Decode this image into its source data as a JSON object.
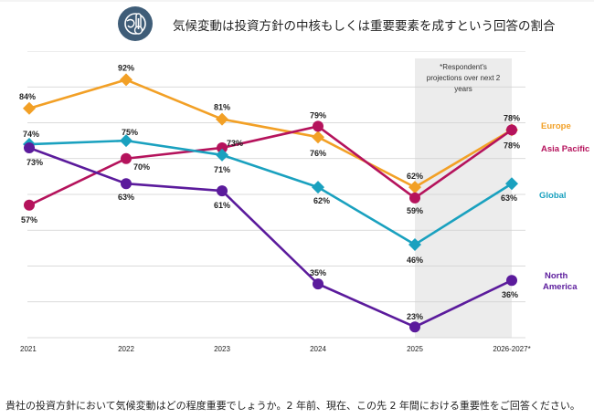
{
  "title": "気候変動は投資方針の中核もしくは重要要素を成すという回答の割合",
  "footnote": "貴社の投資方針において気候変動はどの程度重要でしょうか。2 年前、現在、この先 2 年間における重要性をご回答ください。",
  "icon": "thermometer-globe-icon",
  "colors": {
    "Europe": "#f2a026",
    "Asia Pacific": "#b5135c",
    "Global": "#1aa1bf",
    "North America": "#5b1b9c",
    "icon_bg": "#3f5d78",
    "grid": "#cfcfcf",
    "projection_bg": "#ececec"
  },
  "chart_data": {
    "type": "line",
    "x": [
      "2021",
      "2022",
      "2023",
      "2024",
      "2025",
      "2026-2027*"
    ],
    "ylim": [
      20,
      100
    ],
    "grid": true,
    "legend": "right-end labels",
    "annotation": "*Respondent's projections over next 2 years",
    "series": [
      {
        "name": "Europe",
        "values": [
          84,
          92,
          81,
          76,
          62,
          78
        ],
        "labels": [
          "84%",
          "92%",
          "81%",
          "76%",
          "62%",
          "78%"
        ],
        "marker": "diamond"
      },
      {
        "name": "Asia Pacific",
        "values": [
          57,
          70,
          73,
          79,
          59,
          78
        ],
        "labels": [
          "57%",
          "70%",
          "73%",
          "79%",
          "59%",
          "78%"
        ],
        "marker": "circle"
      },
      {
        "name": "Global",
        "values": [
          74,
          75,
          71,
          62,
          46,
          63
        ],
        "labels": [
          "74%",
          "75%",
          "71%",
          "62%",
          "46%",
          "63%"
        ],
        "marker": "diamond"
      },
      {
        "name": "North America",
        "values": [
          73,
          63,
          61,
          35,
          23,
          36
        ],
        "labels": [
          "73%",
          "63%",
          "61%",
          "35%",
          "23%",
          "36%"
        ],
        "marker": "circle"
      }
    ]
  }
}
